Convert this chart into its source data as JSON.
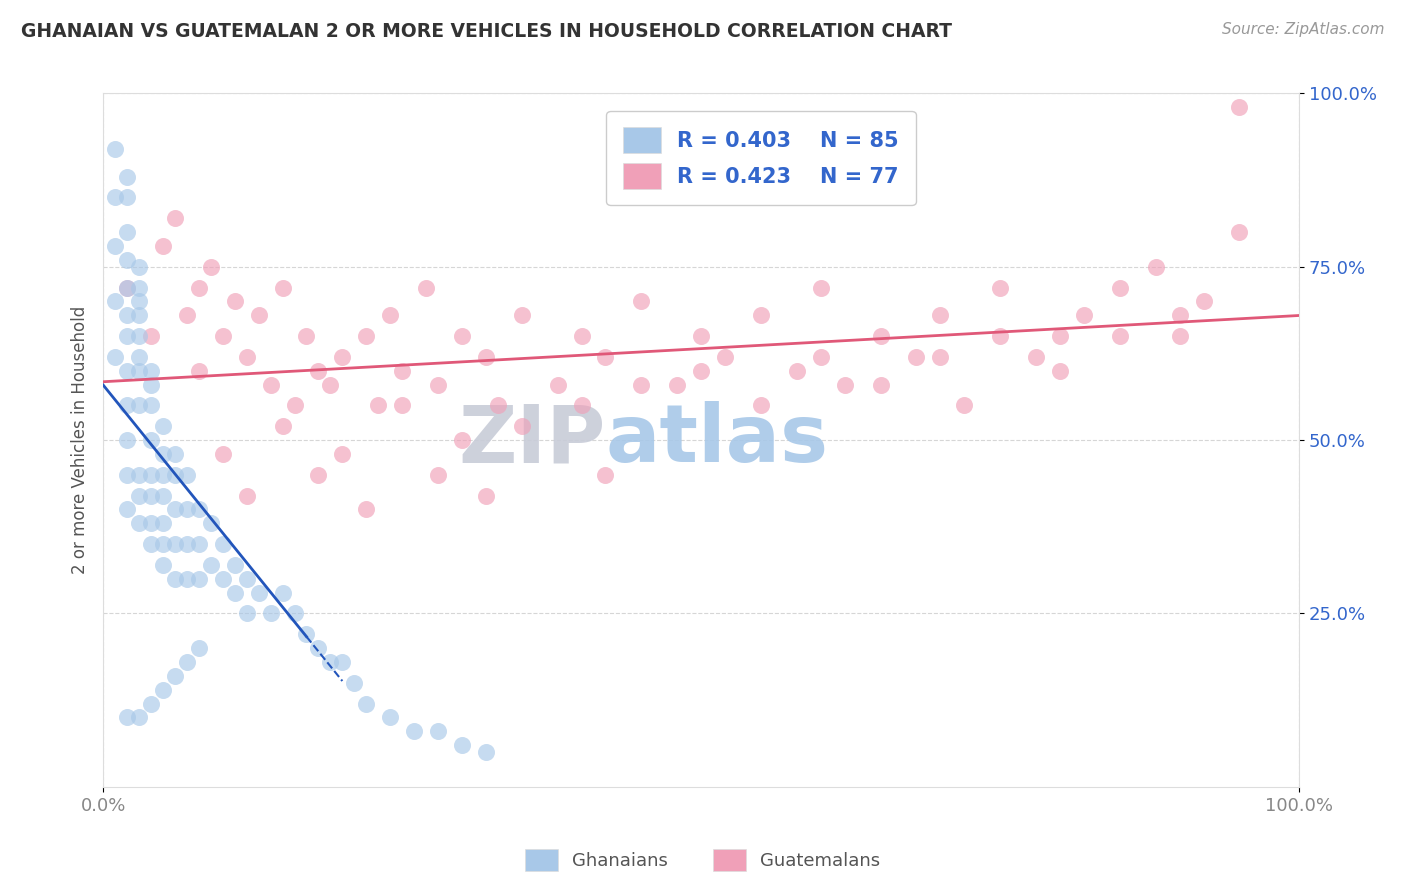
{
  "title": "GHANAIAN VS GUATEMALAN 2 OR MORE VEHICLES IN HOUSEHOLD CORRELATION CHART",
  "source": "Source: ZipAtlas.com",
  "ylabel": "2 or more Vehicles in Household",
  "xlim": [
    0.0,
    1.0
  ],
  "ylim": [
    0.0,
    1.0
  ],
  "ghanaian_R": 0.403,
  "ghanaian_N": 85,
  "guatemalan_R": 0.423,
  "guatemalan_N": 77,
  "ghanaian_color": "#a8c8e8",
  "guatemalan_color": "#f0a0b8",
  "ghanaian_line_color": "#2255bb",
  "guatemalan_line_color": "#e05878",
  "watermark_zip": "ZIP",
  "watermark_atlas": "atlas",
  "watermark_zip_color": "#c8ccd8",
  "watermark_atlas_color": "#a8c8e8",
  "legend_text_color": "#3366cc",
  "tick_color_y": "#3366cc",
  "tick_color_x": "#888888",
  "background_color": "#ffffff",
  "grid_color": "#cccccc",
  "ghanaian_x": [
    0.01,
    0.01,
    0.01,
    0.01,
    0.01,
    0.02,
    0.02,
    0.02,
    0.02,
    0.02,
    0.02,
    0.02,
    0.02,
    0.02,
    0.02,
    0.02,
    0.02,
    0.03,
    0.03,
    0.03,
    0.03,
    0.03,
    0.03,
    0.03,
    0.03,
    0.03,
    0.03,
    0.03,
    0.04,
    0.04,
    0.04,
    0.04,
    0.04,
    0.04,
    0.04,
    0.04,
    0.05,
    0.05,
    0.05,
    0.05,
    0.05,
    0.05,
    0.05,
    0.06,
    0.06,
    0.06,
    0.06,
    0.06,
    0.07,
    0.07,
    0.07,
    0.07,
    0.08,
    0.08,
    0.08,
    0.09,
    0.09,
    0.1,
    0.1,
    0.11,
    0.11,
    0.12,
    0.12,
    0.13,
    0.14,
    0.15,
    0.16,
    0.17,
    0.18,
    0.19,
    0.2,
    0.21,
    0.22,
    0.24,
    0.26,
    0.28,
    0.3,
    0.32,
    0.02,
    0.03,
    0.04,
    0.05,
    0.06,
    0.07,
    0.08
  ],
  "ghanaian_y": [
    0.62,
    0.7,
    0.78,
    0.85,
    0.92,
    0.55,
    0.6,
    0.65,
    0.68,
    0.72,
    0.76,
    0.8,
    0.85,
    0.88,
    0.5,
    0.45,
    0.4,
    0.55,
    0.6,
    0.62,
    0.65,
    0.68,
    0.7,
    0.72,
    0.75,
    0.45,
    0.42,
    0.38,
    0.55,
    0.58,
    0.6,
    0.5,
    0.45,
    0.42,
    0.38,
    0.35,
    0.52,
    0.48,
    0.45,
    0.42,
    0.38,
    0.35,
    0.32,
    0.48,
    0.45,
    0.4,
    0.35,
    0.3,
    0.45,
    0.4,
    0.35,
    0.3,
    0.4,
    0.35,
    0.3,
    0.38,
    0.32,
    0.35,
    0.3,
    0.32,
    0.28,
    0.3,
    0.25,
    0.28,
    0.25,
    0.28,
    0.25,
    0.22,
    0.2,
    0.18,
    0.18,
    0.15,
    0.12,
    0.1,
    0.08,
    0.08,
    0.06,
    0.05,
    0.1,
    0.1,
    0.12,
    0.14,
    0.16,
    0.18,
    0.2
  ],
  "guatemalan_x": [
    0.02,
    0.04,
    0.05,
    0.06,
    0.07,
    0.08,
    0.08,
    0.09,
    0.1,
    0.11,
    0.12,
    0.13,
    0.14,
    0.15,
    0.16,
    0.17,
    0.18,
    0.19,
    0.2,
    0.22,
    0.23,
    0.24,
    0.25,
    0.27,
    0.28,
    0.3,
    0.32,
    0.33,
    0.35,
    0.38,
    0.4,
    0.42,
    0.45,
    0.48,
    0.5,
    0.52,
    0.55,
    0.58,
    0.6,
    0.62,
    0.65,
    0.68,
    0.7,
    0.72,
    0.75,
    0.78,
    0.8,
    0.82,
    0.85,
    0.88,
    0.9,
    0.92,
    0.95,
    0.1,
    0.15,
    0.2,
    0.25,
    0.3,
    0.35,
    0.4,
    0.45,
    0.5,
    0.55,
    0.6,
    0.65,
    0.7,
    0.75,
    0.8,
    0.85,
    0.9,
    0.12,
    0.18,
    0.22,
    0.28,
    0.32,
    0.42,
    0.95
  ],
  "guatemalan_y": [
    0.72,
    0.65,
    0.78,
    0.82,
    0.68,
    0.72,
    0.6,
    0.75,
    0.65,
    0.7,
    0.62,
    0.68,
    0.58,
    0.72,
    0.55,
    0.65,
    0.6,
    0.58,
    0.62,
    0.65,
    0.55,
    0.68,
    0.6,
    0.72,
    0.58,
    0.65,
    0.62,
    0.55,
    0.68,
    0.58,
    0.65,
    0.62,
    0.7,
    0.58,
    0.65,
    0.62,
    0.68,
    0.6,
    0.72,
    0.58,
    0.65,
    0.62,
    0.68,
    0.55,
    0.72,
    0.62,
    0.65,
    0.68,
    0.72,
    0.75,
    0.65,
    0.7,
    0.8,
    0.48,
    0.52,
    0.48,
    0.55,
    0.5,
    0.52,
    0.55,
    0.58,
    0.6,
    0.55,
    0.62,
    0.58,
    0.62,
    0.65,
    0.6,
    0.65,
    0.68,
    0.42,
    0.45,
    0.4,
    0.45,
    0.42,
    0.45,
    0.98
  ]
}
